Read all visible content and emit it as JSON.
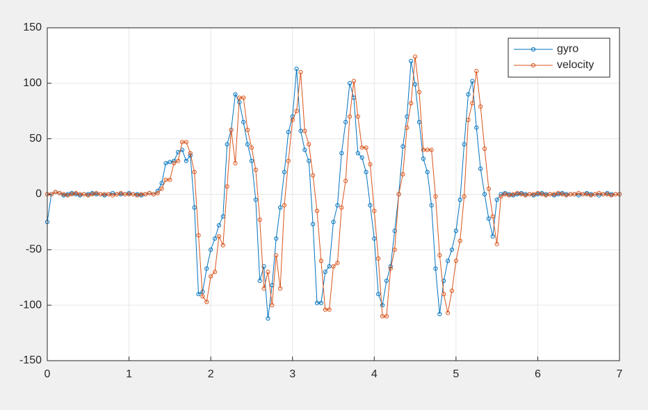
{
  "chart_data": {
    "type": "line",
    "x": [
      0,
      0.05,
      0.1,
      0.15,
      0.2,
      0.25,
      0.3,
      0.35,
      0.4,
      0.45,
      0.5,
      0.55,
      0.6,
      0.65,
      0.7,
      0.75,
      0.8,
      0.85,
      0.9,
      0.95,
      1,
      1.05,
      1.1,
      1.15,
      1.2,
      1.25,
      1.3,
      1.35,
      1.4,
      1.45,
      1.5,
      1.55,
      1.6,
      1.65,
      1.7,
      1.75,
      1.8,
      1.85,
      1.9,
      1.95,
      2,
      2.05,
      2.1,
      2.15,
      2.2,
      2.25,
      2.3,
      2.35,
      2.4,
      2.45,
      2.5,
      2.55,
      2.6,
      2.65,
      2.7,
      2.75,
      2.8,
      2.85,
      2.9,
      2.95,
      3,
      3.05,
      3.1,
      3.15,
      3.2,
      3.25,
      3.3,
      3.35,
      3.4,
      3.45,
      3.5,
      3.55,
      3.6,
      3.65,
      3.7,
      3.75,
      3.8,
      3.85,
      3.9,
      3.95,
      4,
      4.05,
      4.1,
      4.15,
      4.2,
      4.25,
      4.3,
      4.35,
      4.4,
      4.45,
      4.5,
      4.55,
      4.6,
      4.65,
      4.7,
      4.75,
      4.8,
      4.85,
      4.9,
      4.95,
      5,
      5.05,
      5.1,
      5.15,
      5.2,
      5.25,
      5.3,
      5.35,
      5.4,
      5.45,
      5.5,
      5.55,
      5.6,
      5.65,
      5.7,
      5.75,
      5.8,
      5.85,
      5.9,
      5.95,
      6,
      6.05,
      6.1,
      6.15,
      6.2,
      6.25,
      6.3,
      6.35,
      6.4,
      6.45,
      6.5,
      6.55,
      6.6,
      6.65,
      6.7,
      6.75,
      6.8,
      6.85,
      6.9,
      6.95,
      7
    ],
    "series": [
      {
        "name": "gyro",
        "color": "#0072BD",
        "values": [
          -25,
          0,
          2,
          1,
          -1,
          0,
          1,
          0,
          -1,
          0,
          0,
          1,
          0,
          0,
          -1,
          0,
          1,
          0,
          0,
          0,
          1,
          0,
          0,
          -1,
          0,
          1,
          0,
          3,
          10,
          28,
          29,
          30,
          38,
          40,
          30,
          35,
          -12,
          -90,
          -88,
          -67,
          -50,
          -40,
          -28,
          -20,
          45,
          58,
          90,
          83,
          65,
          45,
          30,
          -5,
          -78,
          -65,
          -112,
          -82,
          -40,
          -12,
          20,
          56,
          70,
          113,
          57,
          40,
          30,
          -27,
          -98,
          -98,
          -70,
          -65,
          -25,
          -10,
          37,
          65,
          100,
          87,
          37,
          33,
          20,
          -10,
          -40,
          -90,
          -100,
          -78,
          -65,
          -33,
          0,
          43,
          70,
          120,
          99,
          65,
          32,
          20,
          -10,
          -67,
          -108,
          -78,
          -60,
          -50,
          -33,
          -5,
          45,
          90,
          102,
          60,
          23,
          0,
          -22,
          -38,
          -5,
          0,
          1,
          0,
          -1,
          0,
          1,
          0,
          0,
          -1,
          0,
          1,
          0,
          0,
          -1,
          0,
          1,
          0,
          0,
          0,
          -1,
          0,
          1,
          0,
          0,
          -1,
          0,
          1,
          0,
          0,
          0
        ]
      },
      {
        "name": "velocity",
        "color": "#D95319",
        "values": [
          0,
          0,
          2,
          1,
          0,
          -1,
          0,
          1,
          0,
          0,
          -1,
          0,
          1,
          0,
          0,
          0,
          -1,
          0,
          1,
          0,
          0,
          0,
          -1,
          0,
          0,
          1,
          0,
          1,
          5,
          13,
          13,
          28,
          30,
          47,
          47,
          37,
          20,
          -37,
          -92,
          -97,
          -74,
          -70,
          -38,
          -46,
          7,
          58,
          28,
          87,
          87,
          58,
          42,
          22,
          -23,
          -85,
          -70,
          -100,
          -55,
          -85,
          -10,
          30,
          67,
          75,
          110,
          57,
          45,
          17,
          -15,
          -60,
          -104,
          -104,
          -65,
          -62,
          -12,
          12,
          70,
          102,
          70,
          42,
          42,
          27,
          -15,
          -58,
          -110,
          -110,
          -67,
          -50,
          0,
          18,
          60,
          82,
          124,
          92,
          40,
          40,
          40,
          -2,
          -55,
          -90,
          -107,
          -87,
          -60,
          -42,
          -2,
          67,
          82,
          111,
          79,
          41,
          5,
          -20,
          -45,
          -2,
          0,
          -1,
          0,
          1,
          0,
          -1,
          0,
          0,
          1,
          0,
          -1,
          0,
          0,
          1,
          0,
          -1,
          0,
          0,
          1,
          0,
          0,
          -1,
          0,
          1,
          0,
          0,
          -1,
          0,
          0
        ]
      }
    ],
    "xlim": [
      0,
      7
    ],
    "xticks": [
      0,
      1,
      2,
      3,
      4,
      5,
      6,
      7
    ],
    "ylim": [
      -150,
      150
    ],
    "yticks": [
      -150,
      -100,
      -50,
      0,
      50,
      100,
      150
    ],
    "grid": true,
    "legend": "northeast"
  }
}
